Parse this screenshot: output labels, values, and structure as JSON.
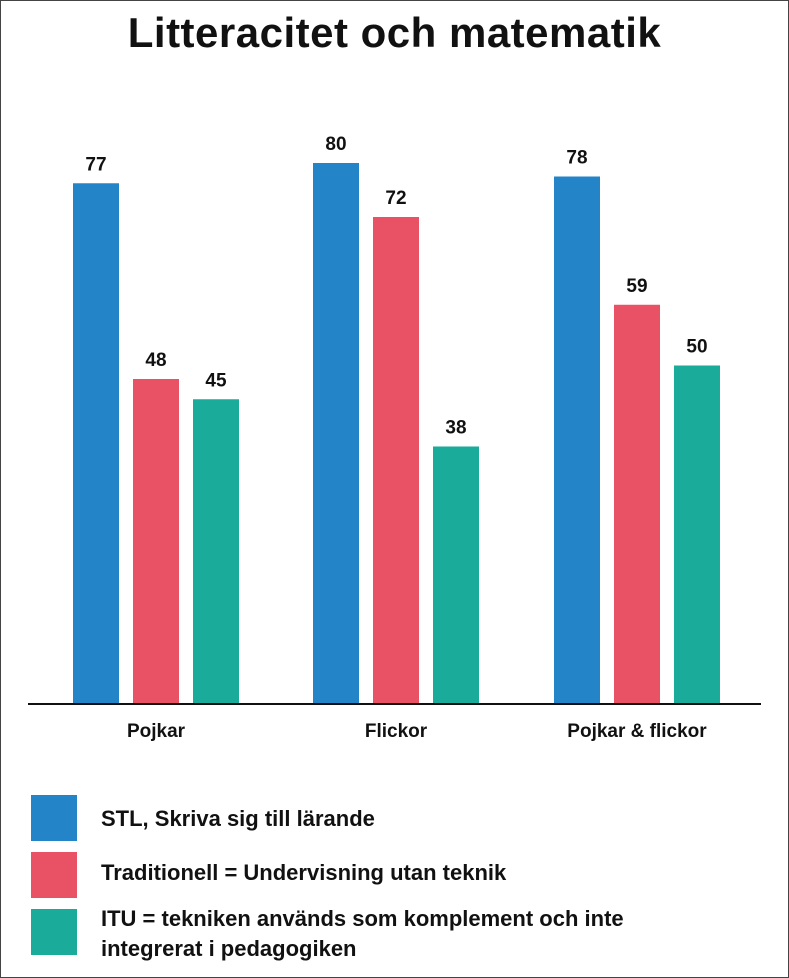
{
  "chart_data": {
    "type": "bar",
    "title": "Litteracitet och matematik",
    "categories": [
      "Pojkar",
      "Flickor",
      "Pojkar & flickor"
    ],
    "series": [
      {
        "name": "STL, Skriva sig till lärande",
        "color": "#2385c8",
        "values": [
          77,
          80,
          78
        ]
      },
      {
        "name": "Traditionell = Undervisning utan teknik",
        "color": "#e85264",
        "values": [
          48,
          72,
          59
        ]
      },
      {
        "name": "ITU = tekniken används som komplement och inte integrerat i pedagogiken",
        "color": "#1aab9b",
        "values": [
          45,
          38,
          50
        ]
      }
    ],
    "xlabel": "",
    "ylabel": "",
    "ylim": [
      0,
      100
    ],
    "grid": false,
    "legend_position": "bottom"
  }
}
